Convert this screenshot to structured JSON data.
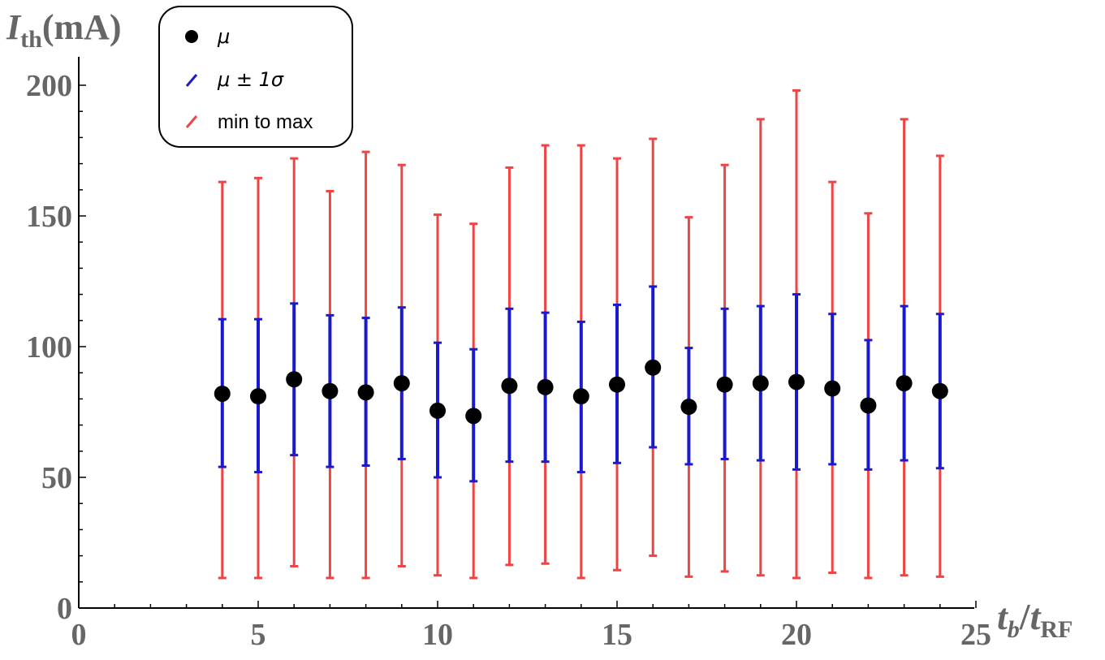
{
  "chart_data": {
    "type": "scatter",
    "x": [
      4,
      5,
      6,
      7,
      8,
      9,
      10,
      11,
      12,
      13,
      14,
      15,
      16,
      17,
      18,
      19,
      20,
      21,
      22,
      23,
      24
    ],
    "series": [
      {
        "name": "μ",
        "kind": "points",
        "color": "#000000",
        "values": [
          82,
          81,
          87.5,
          83,
          82.5,
          86,
          75.5,
          73.5,
          85,
          84.5,
          81,
          85.5,
          92,
          77,
          85.5,
          86,
          86.5,
          84,
          77.5,
          86,
          83
        ]
      },
      {
        "name": "μ ± 1σ",
        "kind": "error-range",
        "color": "#1a1acc",
        "low": [
          54,
          52,
          58.5,
          54,
          54.5,
          57,
          50,
          48.5,
          56,
          56,
          52,
          55.5,
          61.5,
          55,
          57,
          56.5,
          53,
          55,
          53,
          56.5,
          53.5
        ],
        "high": [
          110.5,
          110.5,
          116.5,
          112,
          111,
          115,
          101.5,
          99,
          114.5,
          113,
          109.5,
          116,
          123,
          99.5,
          114.5,
          115.5,
          120,
          112.5,
          102.5,
          115.5,
          112.5
        ]
      },
      {
        "name": "min to max",
        "kind": "error-range",
        "color": "#ee4444",
        "low": [
          11.5,
          11.5,
          16,
          11.5,
          11.5,
          16,
          12.5,
          11.5,
          16.5,
          17,
          11.5,
          14.5,
          20,
          12,
          14,
          12.5,
          11.5,
          13.5,
          11.5,
          12.5,
          12
        ],
        "high": [
          163,
          164.5,
          172,
          159.5,
          174.5,
          169.5,
          150.5,
          147,
          168.5,
          177,
          177,
          172,
          179.5,
          149.5,
          169.5,
          187,
          198,
          163,
          151,
          187,
          173
        ]
      }
    ],
    "xlim": [
      0,
      25
    ],
    "ylim": [
      0,
      205
    ],
    "xticks": [
      0,
      5,
      10,
      15,
      20,
      25
    ],
    "yticks": [
      0,
      50,
      100,
      150,
      200
    ],
    "xtick_labels": [
      "0",
      "5",
      "10",
      "15",
      "20",
      "25"
    ],
    "ytick_labels": [
      "0",
      "50",
      "100",
      "150",
      "200"
    ],
    "ylabel": {
      "main": "I",
      "sub": "th",
      "unit": "(mA)"
    },
    "xlabel": {
      "num": "t",
      "num_sub": "b",
      "slash": "/",
      "den": "t",
      "den_sub": "RF"
    },
    "legend": {
      "position": "top-left",
      "items": [
        "μ",
        "μ ± 1σ",
        "min to max"
      ]
    },
    "grid": false
  }
}
